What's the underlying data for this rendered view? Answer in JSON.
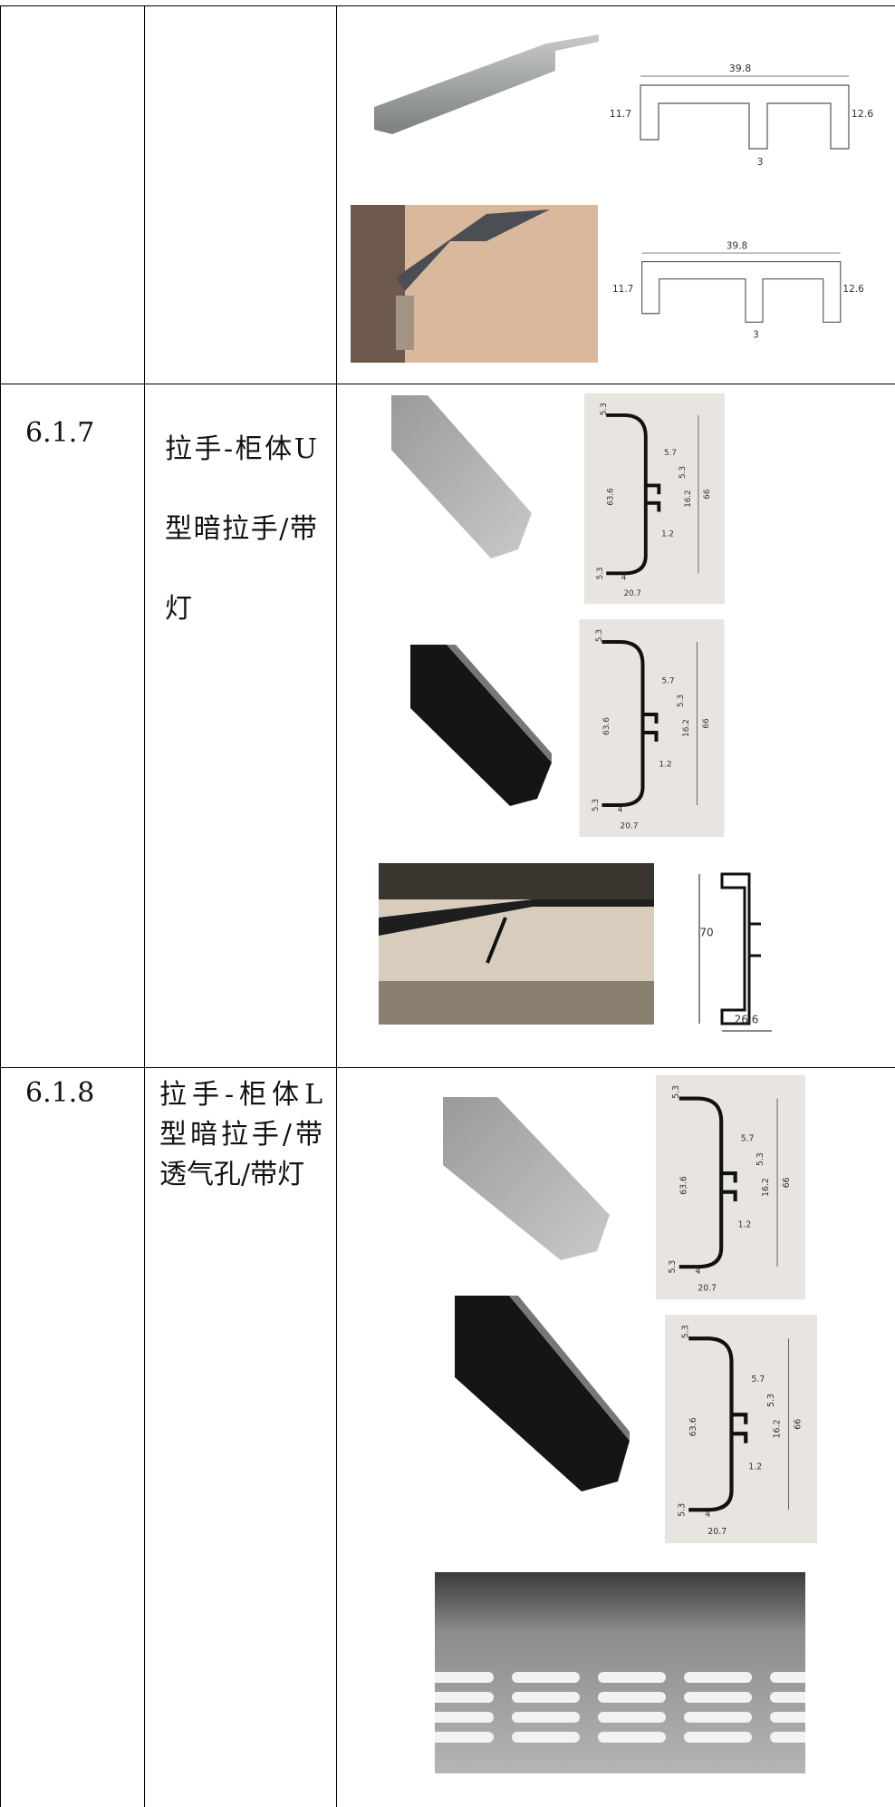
{
  "table": {
    "rows": [
      {
        "number": "6.1.7",
        "name": "拉手-柜体U型暗拉手/带灯"
      },
      {
        "number": "6.1.8",
        "name": "拉手-柜体L型暗拉手/带透气孔/带灯"
      }
    ]
  },
  "drawings": {
    "t_profile": [
      "39.8",
      "11.7",
      "12.6",
      "3"
    ],
    "c_profile": [
      "5.3",
      "5.7",
      "5.3",
      "16.2",
      "66",
      "63.6",
      "1.2",
      "5.3",
      "4",
      "20.7"
    ],
    "side_profile": [
      "70",
      "26.6"
    ]
  }
}
